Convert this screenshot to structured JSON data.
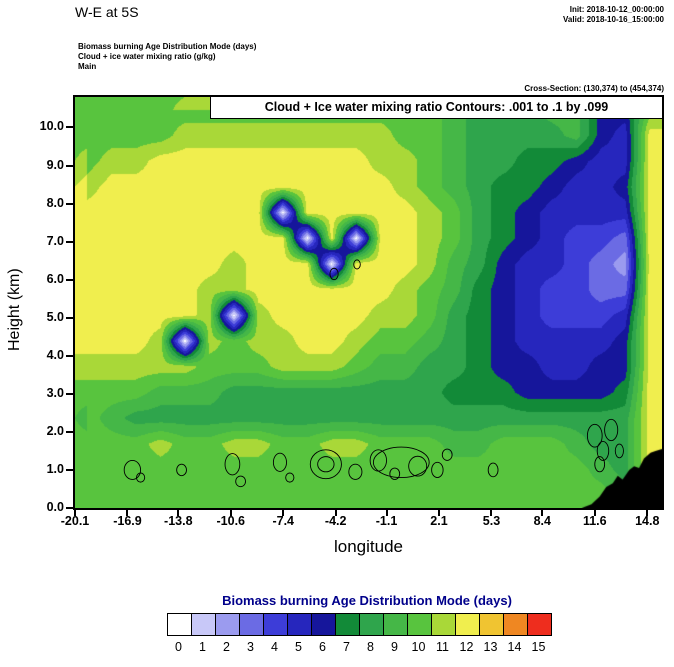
{
  "header": {
    "title": "W-E at 5S",
    "init_label": "Init: 2018-10-12_00:00:00",
    "valid_label": "Valid: 2018-10-16_15:00:00",
    "field_line1": "Biomass burning Age Distribution Mode   (days)",
    "field_line2": "Cloud + ice water mixing ratio   (g/kg)",
    "field_line3": "Main",
    "cross_section_label": "Cross-Section: (130,374) to (454,374)"
  },
  "plot": {
    "contour_info": "Cloud + Ice water mixing ratio Contours: .001 to .1 by .099",
    "xlabel": "longitude",
    "ylabel": "Height (km)"
  },
  "chart_data": {
    "type": "heatmap",
    "title": "W-E at 5S",
    "subtitle": "Biomass burning Age Distribution Mode (days) shaded; Cloud + Ice water mixing ratio (g/kg) contoured .001 to .1 by .099",
    "xlabel": "longitude",
    "ylabel": "Height (km)",
    "x_range": [
      -20.1,
      15.7
    ],
    "y_range": [
      0,
      10.8
    ],
    "x_ticks": [
      "-20.1",
      "-16.9",
      "-13.8",
      "-10.6",
      "-7.4",
      "-4.2",
      "-1.1",
      "2.1",
      "5.3",
      "8.4",
      "11.6",
      "14.8"
    ],
    "y_ticks": [
      "0.0",
      "1.0",
      "2.0",
      "3.0",
      "4.0",
      "5.0",
      "6.0",
      "7.0",
      "8.0",
      "9.0",
      "10.0"
    ],
    "colorbar": {
      "title": "Biomass burning Age Distribution Mode  (days)",
      "labels": [
        "0",
        "1",
        "2",
        "3",
        "4",
        "5",
        "6",
        "7",
        "8",
        "9",
        "10",
        "11",
        "12",
        "13",
        "14",
        "15"
      ],
      "colors": [
        "#ffffff",
        "#c8c8f8",
        "#9b9bef",
        "#6b6be4",
        "#3d3dd8",
        "#2626bd",
        "#16169b",
        "#128a38",
        "#2fa54c",
        "#45b747",
        "#58c43e",
        "#a9d838",
        "#f0ee4e",
        "#f0c431",
        "#ef8722",
        "#ee2d1e"
      ]
    },
    "field_grid": {
      "comment": "Age distribution mode (days) on coarse lon-height grid, rows top(10.8km) to bottom(0km), cols west(-20.1) to east(15.7)",
      "cols": 24,
      "rows": 16,
      "values": [
        [
          10,
          10,
          10,
          10,
          10,
          10,
          10,
          10,
          10,
          10,
          10,
          10,
          10,
          10,
          10,
          9,
          8,
          8,
          8,
          9,
          9,
          6,
          6,
          10
        ],
        [
          10,
          10,
          10,
          10,
          11,
          11,
          11,
          11,
          11,
          11,
          11,
          11,
          11,
          10,
          10,
          9,
          8,
          8,
          8,
          8,
          9,
          6,
          5,
          12
        ],
        [
          10,
          11,
          11,
          12,
          12,
          12,
          12,
          12,
          12,
          12,
          12,
          12,
          11,
          11,
          10,
          9,
          8,
          8,
          7,
          7,
          6,
          5,
          5,
          12
        ],
        [
          11,
          12,
          12,
          12,
          12,
          12,
          12,
          12,
          12,
          12,
          12,
          12,
          12,
          11,
          10,
          9,
          8,
          7,
          7,
          6,
          5,
          5,
          6,
          12
        ],
        [
          12,
          12,
          12,
          12,
          12,
          12,
          12,
          12,
          0,
          12,
          12,
          12,
          12,
          12,
          11,
          10,
          8,
          7,
          6,
          5,
          5,
          5,
          5,
          12
        ],
        [
          12,
          12,
          12,
          12,
          12,
          12,
          12,
          12,
          12,
          0,
          12,
          0,
          12,
          12,
          11,
          10,
          8,
          7,
          6,
          5,
          4,
          4,
          3,
          12
        ],
        [
          12,
          12,
          12,
          12,
          12,
          12,
          11,
          12,
          12,
          12,
          0,
          12,
          12,
          12,
          11,
          9,
          8,
          6,
          5,
          5,
          4,
          3,
          2,
          12
        ],
        [
          12,
          12,
          12,
          12,
          12,
          11,
          11,
          12,
          12,
          12,
          12,
          12,
          12,
          11,
          10,
          9,
          7,
          6,
          5,
          4,
          4,
          3,
          3,
          12
        ],
        [
          12,
          12,
          12,
          12,
          12,
          11,
          0,
          11,
          12,
          12,
          12,
          12,
          11,
          11,
          10,
          8,
          7,
          6,
          5,
          4,
          4,
          4,
          5,
          12
        ],
        [
          12,
          12,
          12,
          11,
          0,
          11,
          10,
          11,
          11,
          12,
          12,
          11,
          10,
          10,
          9,
          8,
          7,
          6,
          5,
          5,
          5,
          5,
          6,
          12
        ],
        [
          11,
          11,
          11,
          11,
          11,
          10,
          10,
          10,
          11,
          11,
          11,
          10,
          9,
          9,
          8,
          8,
          7,
          6,
          6,
          5,
          5,
          6,
          6,
          12
        ],
        [
          10,
          10,
          10,
          9,
          9,
          9,
          8,
          8,
          8,
          8,
          8,
          8,
          8,
          8,
          8,
          7,
          7,
          7,
          6,
          6,
          6,
          6,
          7,
          12
        ],
        [
          10,
          9,
          8,
          8,
          8,
          8,
          8,
          8,
          8,
          8,
          8,
          8,
          8,
          8,
          8,
          8,
          8,
          8,
          8,
          8,
          8,
          8,
          8,
          12
        ],
        [
          10,
          10,
          10,
          11,
          10,
          10,
          11,
          11,
          10,
          10,
          11,
          11,
          10,
          10,
          10,
          9,
          9,
          10,
          10,
          10,
          9,
          8,
          8,
          12
        ],
        [
          10,
          10,
          10,
          10,
          10,
          10,
          10,
          10,
          10,
          10,
          10,
          10,
          10,
          10,
          10,
          10,
          10,
          10,
          10,
          10,
          10,
          9,
          8,
          12
        ],
        [
          10,
          10,
          10,
          10,
          10,
          10,
          10,
          10,
          10,
          10,
          10,
          10,
          10,
          10,
          10,
          10,
          10,
          10,
          10,
          10,
          10,
          10,
          9,
          10
        ]
      ]
    },
    "terrain_profile": [
      [
        10.8,
        0.0
      ],
      [
        11.4,
        0.1
      ],
      [
        11.9,
        0.3
      ],
      [
        12.3,
        0.55
      ],
      [
        12.7,
        0.65
      ],
      [
        13.0,
        0.85
      ],
      [
        13.3,
        0.75
      ],
      [
        13.7,
        1.0
      ],
      [
        14.0,
        1.1
      ],
      [
        14.3,
        1.05
      ],
      [
        14.6,
        1.3
      ],
      [
        15.0,
        1.45
      ],
      [
        15.3,
        1.5
      ],
      [
        15.7,
        1.55
      ]
    ],
    "cloud_contours": {
      "note": "Cloud + Ice water mixing ratio Contours: .001 to .1 by .099",
      "blobs": [
        [
          -16.6,
          1.0,
          0.5,
          0.25
        ],
        [
          -16.1,
          0.8,
          0.25,
          0.12
        ],
        [
          -13.6,
          1.0,
          0.3,
          0.15
        ],
        [
          -10.5,
          1.15,
          0.45,
          0.28
        ],
        [
          -10.0,
          0.7,
          0.3,
          0.14
        ],
        [
          -7.6,
          1.2,
          0.4,
          0.24
        ],
        [
          -7.0,
          0.8,
          0.25,
          0.12
        ],
        [
          -4.8,
          1.15,
          0.95,
          0.38
        ],
        [
          -4.8,
          1.15,
          0.5,
          0.2
        ],
        [
          -3.0,
          0.95,
          0.4,
          0.2
        ],
        [
          -1.6,
          1.25,
          0.5,
          0.28
        ],
        [
          -0.6,
          0.9,
          0.3,
          0.15
        ],
        [
          -0.2,
          1.2,
          1.7,
          0.4
        ],
        [
          0.8,
          1.1,
          0.55,
          0.26
        ],
        [
          2.0,
          1.0,
          0.35,
          0.2
        ],
        [
          2.6,
          1.4,
          0.3,
          0.15
        ],
        [
          5.4,
          1.0,
          0.3,
          0.18
        ],
        [
          11.6,
          1.9,
          0.45,
          0.3
        ],
        [
          12.1,
          1.5,
          0.35,
          0.25
        ],
        [
          12.6,
          2.05,
          0.4,
          0.28
        ],
        [
          11.9,
          1.15,
          0.3,
          0.2
        ],
        [
          13.1,
          1.5,
          0.25,
          0.18
        ],
        [
          -4.3,
          6.15,
          0.25,
          0.15
        ],
        [
          -2.9,
          6.4,
          0.2,
          0.12
        ]
      ]
    }
  }
}
